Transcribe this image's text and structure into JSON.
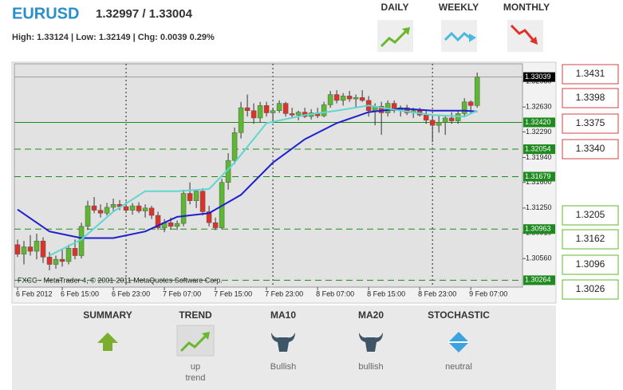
{
  "header": {
    "symbol": "EURUSD",
    "quote": "1.32997 / 1.33004",
    "stats": "High: 1.33124 | Low: 1.32149 | Chg: 0.0039 0.29%"
  },
  "periods": [
    "DAILY",
    "WEEKLY",
    "MONTHLY"
  ],
  "chart_data": {
    "type": "candlestick",
    "copyright": "FXCC - MetaTrader 4, © 2001-2011 MetaQuotes Software Corp.",
    "up_color": "#5cb82e",
    "down_color": "#e0302a",
    "ylim": [
      1.3017,
      1.3322
    ],
    "yticks": [
      {
        "value": 1.3298,
        "label": "1.32980"
      },
      {
        "value": 1.3263,
        "label": "1.32630"
      },
      {
        "value": 1.3229,
        "label": "1.32290"
      },
      {
        "value": 1.3194,
        "label": "1.31940"
      },
      {
        "value": 1.316,
        "label": "1.31600"
      },
      {
        "value": 1.3125,
        "label": "1.31250"
      },
      {
        "value": 1.3091,
        "label": "1.30910"
      },
      {
        "value": 1.3056,
        "label": "1.30560"
      }
    ],
    "xlim": [
      -0.5,
      79.1
    ],
    "xticks": [
      {
        "value": 0,
        "label": "6 Feb 2012"
      },
      {
        "value": 7,
        "label": "6 Feb 15:00"
      },
      {
        "value": 15,
        "label": "6 Feb 23:00"
      },
      {
        "value": 23,
        "label": "7 Feb 07:00"
      },
      {
        "value": 31,
        "label": "7 Feb 15:00"
      },
      {
        "value": 39,
        "label": "7 Feb 23:00"
      },
      {
        "value": 47,
        "label": "8 Feb 07:00"
      },
      {
        "value": 55,
        "label": "8 Feb 15:00"
      },
      {
        "value": 63,
        "label": "8 Feb 23:00"
      },
      {
        "value": 71,
        "label": "9 Feb 07:00"
      }
    ],
    "day_separators": [
      17,
      40,
      65
    ],
    "price_line": 1.33039,
    "levels": [
      {
        "value": 1.3242,
        "label": "1.32420",
        "style": "solid"
      },
      {
        "value": 1.32054,
        "style": "dashed"
      },
      {
        "value": 1.31679,
        "style": "dashed"
      },
      {
        "value": 1.30963,
        "style": "dashed"
      },
      {
        "value": 1.30264,
        "style": "dashed"
      }
    ],
    "candles": [
      [
        1.3075,
        1.3082,
        1.3058,
        1.3062
      ],
      [
        1.3062,
        1.308,
        1.3048,
        1.3072
      ],
      [
        1.3072,
        1.3088,
        1.306,
        1.3066
      ],
      [
        1.3066,
        1.309,
        1.3055,
        1.308
      ],
      [
        1.308,
        1.3085,
        1.305,
        1.3058
      ],
      [
        1.3058,
        1.3065,
        1.304,
        1.3048
      ],
      [
        1.3048,
        1.306,
        1.3042,
        1.3055
      ],
      [
        1.3055,
        1.3068,
        1.3045,
        1.3052
      ],
      [
        1.3052,
        1.3075,
        1.3048,
        1.307
      ],
      [
        1.307,
        1.3082,
        1.3055,
        1.306
      ],
      [
        1.306,
        1.3105,
        1.3056,
        1.31
      ],
      [
        1.31,
        1.3135,
        1.3095,
        1.3128
      ],
      [
        1.3128,
        1.314,
        1.3118,
        1.3122
      ],
      [
        1.3122,
        1.313,
        1.3112,
        1.3118
      ],
      [
        1.3118,
        1.3132,
        1.3115,
        1.3126
      ],
      [
        1.3126,
        1.3138,
        1.312,
        1.313
      ],
      [
        1.313,
        1.3136,
        1.3122,
        1.3127
      ],
      [
        1.3127,
        1.3134,
        1.3118,
        1.3122
      ],
      [
        1.3122,
        1.3132,
        1.3116,
        1.3128
      ],
      [
        1.3128,
        1.3133,
        1.3118,
        1.3121
      ],
      [
        1.3121,
        1.313,
        1.3112,
        1.3125
      ],
      [
        1.3125,
        1.3128,
        1.311,
        1.3115
      ],
      [
        1.3115,
        1.312,
        1.3095,
        1.3098
      ],
      [
        1.3098,
        1.311,
        1.3092,
        1.3105
      ],
      [
        1.3105,
        1.3112,
        1.3096,
        1.31
      ],
      [
        1.31,
        1.3108,
        1.3095,
        1.3104
      ],
      [
        1.3104,
        1.315,
        1.31,
        1.3145
      ],
      [
        1.3145,
        1.316,
        1.313,
        1.3135
      ],
      [
        1.3135,
        1.315,
        1.3125,
        1.3148
      ],
      [
        1.3148,
        1.3152,
        1.3115,
        1.312
      ],
      [
        1.312,
        1.3128,
        1.31,
        1.3105
      ],
      [
        1.3105,
        1.3112,
        1.3095,
        1.3098
      ],
      [
        1.3098,
        1.3165,
        1.3096,
        1.316
      ],
      [
        1.316,
        1.32,
        1.315,
        1.319
      ],
      [
        1.319,
        1.3235,
        1.3185,
        1.3228
      ],
      [
        1.3228,
        1.327,
        1.322,
        1.3262
      ],
      [
        1.3262,
        1.328,
        1.325,
        1.3258
      ],
      [
        1.3258,
        1.3268,
        1.324,
        1.3248
      ],
      [
        1.3248,
        1.327,
        1.3242,
        1.3265
      ],
      [
        1.3265,
        1.327,
        1.325,
        1.3255
      ],
      [
        1.3255,
        1.3262,
        1.3245,
        1.3258
      ],
      [
        1.3258,
        1.3272,
        1.3255,
        1.3268
      ],
      [
        1.3268,
        1.327,
        1.325,
        1.3254
      ],
      [
        1.3254,
        1.3262,
        1.3248,
        1.3252
      ],
      [
        1.3252,
        1.3258,
        1.3245,
        1.3256
      ],
      [
        1.3256,
        1.3262,
        1.3248,
        1.325
      ],
      [
        1.325,
        1.326,
        1.3246,
        1.3255
      ],
      [
        1.3255,
        1.3262,
        1.3248,
        1.3251
      ],
      [
        1.3251,
        1.327,
        1.3249,
        1.3266
      ],
      [
        1.3266,
        1.3285,
        1.3262,
        1.328
      ],
      [
        1.328,
        1.3286,
        1.3268,
        1.3272
      ],
      [
        1.3272,
        1.3282,
        1.3265,
        1.3278
      ],
      [
        1.3278,
        1.3285,
        1.327,
        1.3274
      ],
      [
        1.3274,
        1.328,
        1.3262,
        1.3276
      ],
      [
        1.3276,
        1.3286,
        1.327,
        1.3272
      ],
      [
        1.3272,
        1.3278,
        1.325,
        1.3258
      ],
      [
        1.3258,
        1.3268,
        1.3238,
        1.3264
      ],
      [
        1.3264,
        1.327,
        1.3225,
        1.3255
      ],
      [
        1.3255,
        1.3272,
        1.325,
        1.3268
      ],
      [
        1.3268,
        1.3272,
        1.3255,
        1.3258
      ],
      [
        1.3258,
        1.3265,
        1.325,
        1.3262
      ],
      [
        1.3262,
        1.3266,
        1.3252,
        1.3255
      ],
      [
        1.3255,
        1.3262,
        1.3248,
        1.3258
      ],
      [
        1.3258,
        1.3262,
        1.325,
        1.3252
      ],
      [
        1.3252,
        1.3258,
        1.324,
        1.3245
      ],
      [
        1.3245,
        1.325,
        1.3215,
        1.3238
      ],
      [
        1.3238,
        1.3252,
        1.3228,
        1.3242
      ],
      [
        1.3242,
        1.325,
        1.3225,
        1.3248
      ],
      [
        1.3248,
        1.3256,
        1.324,
        1.3244
      ],
      [
        1.3244,
        1.3258,
        1.324,
        1.3254
      ],
      [
        1.3254,
        1.3275,
        1.325,
        1.327
      ],
      [
        1.327,
        1.3272,
        1.3255,
        1.3265
      ],
      [
        1.3265,
        1.331,
        1.3262,
        1.3304
      ]
    ],
    "ma": [
      {
        "color": "#1f1fcc",
        "x": [
          0,
          5,
          10,
          15,
          20,
          25,
          30,
          35,
          40,
          45,
          50,
          55,
          60,
          65,
          70,
          72
        ],
        "values": [
          1.3123,
          1.3093,
          1.3084,
          1.3084,
          1.3093,
          1.3113,
          1.3118,
          1.3143,
          1.3187,
          1.3219,
          1.3241,
          1.3256,
          1.3261,
          1.3258,
          1.3258,
          1.3257
        ]
      },
      {
        "color": "#5fd6d0",
        "x": [
          5,
          10,
          15,
          20,
          25,
          30,
          34,
          39,
          45,
          50,
          55,
          60,
          65,
          70,
          72
        ],
        "values": [
          1.306,
          1.3082,
          1.312,
          1.3148,
          1.3148,
          1.3151,
          1.3187,
          1.3241,
          1.3252,
          1.3258,
          1.3265,
          1.3258,
          1.3252,
          1.325,
          1.3258
        ]
      }
    ]
  },
  "resistance": [
    "1.3431",
    "1.3398",
    "1.3375",
    "1.3340"
  ],
  "support": [
    "1.3205",
    "1.3162",
    "1.3096",
    "1.3026"
  ],
  "summary": [
    {
      "title": "SUMMARY"
    },
    {
      "title": "TREND",
      "lines": [
        "up",
        "trend"
      ]
    },
    {
      "title": "MA10",
      "lines": [
        "Bullish"
      ]
    },
    {
      "title": "MA20",
      "lines": [
        "bullish"
      ]
    },
    {
      "title": "STOCHASTIC",
      "lines": [
        "neutral"
      ]
    }
  ]
}
